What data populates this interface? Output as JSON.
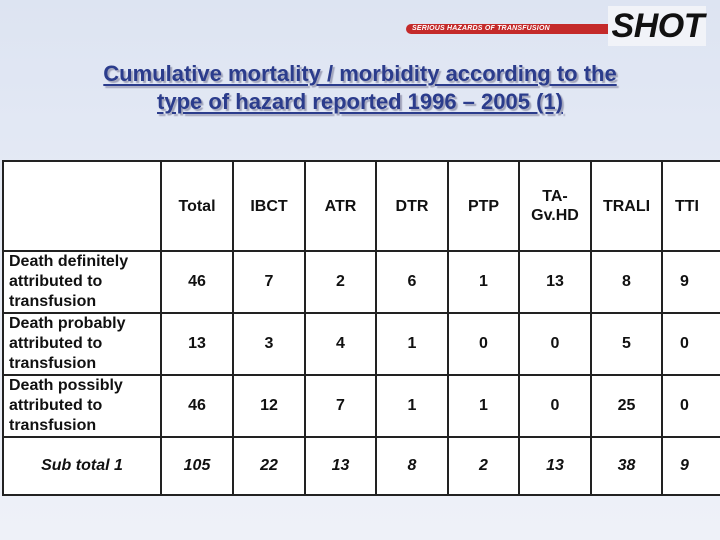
{
  "logo": {
    "tagline": "SERIOUS HAZARDS OF TRANSFUSION",
    "wordmark": "SHOT"
  },
  "title": {
    "line1": "Cumulative mortality / morbidity according to the",
    "line2": "type of hazard reported 1996 – 2005 (1)"
  },
  "table": {
    "columns": [
      "",
      "Total",
      "IBCT",
      "ATR",
      "DTR",
      "PTP",
      "TA-\nGv.HD",
      "TRALI",
      "TTI"
    ],
    "rows": [
      {
        "label": "Death definitely attributed to transfusion",
        "values": [
          "46",
          "7",
          "2",
          "6",
          "1",
          "13",
          "8",
          "9"
        ]
      },
      {
        "label": "Death probably attributed to transfusion",
        "values": [
          "13",
          "3",
          "4",
          "1",
          "0",
          "0",
          "5",
          "0"
        ]
      },
      {
        "label": "Death possibly attributed to transfusion",
        "values": [
          "46",
          "12",
          "7",
          "1",
          "1",
          "0",
          "25",
          "0"
        ]
      }
    ],
    "subtotal": {
      "label": "Sub total 1",
      "values": [
        "105",
        "22",
        "13",
        "8",
        "2",
        "13",
        "38",
        "9"
      ]
    }
  },
  "colors": {
    "title": "#2b3c8c",
    "logo_band": "#c42a2a",
    "background": "#e4e9f4"
  }
}
